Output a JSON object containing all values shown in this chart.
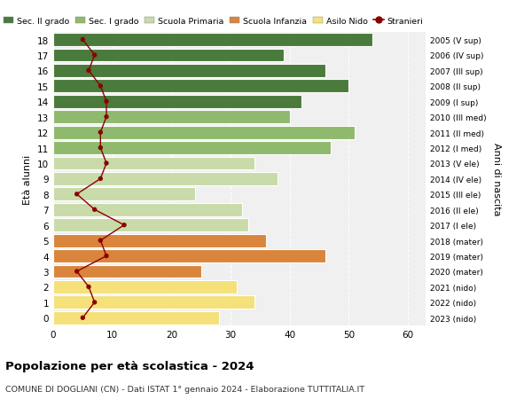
{
  "ages": [
    0,
    1,
    2,
    3,
    4,
    5,
    6,
    7,
    8,
    9,
    10,
    11,
    12,
    13,
    14,
    15,
    16,
    17,
    18
  ],
  "bar_values": [
    28,
    34,
    31,
    25,
    46,
    36,
    33,
    32,
    24,
    38,
    34,
    47,
    51,
    40,
    42,
    50,
    46,
    39,
    54
  ],
  "stranieri": [
    5,
    7,
    6,
    4,
    9,
    8,
    12,
    7,
    4,
    8,
    9,
    8,
    8,
    9,
    9,
    8,
    6,
    7,
    5
  ],
  "bar_colors": [
    "#f5e07a",
    "#f5e07a",
    "#f5e07a",
    "#d9853c",
    "#d9853c",
    "#d9853c",
    "#c8dba8",
    "#c8dba8",
    "#c8dba8",
    "#c8dba8",
    "#c8dba8",
    "#8fba6e",
    "#8fba6e",
    "#8fba6e",
    "#4a7a3c",
    "#4a7a3c",
    "#4a7a3c",
    "#4a7a3c",
    "#4a7a3c"
  ],
  "right_labels": [
    "2023 (nido)",
    "2022 (nido)",
    "2021 (nido)",
    "2020 (mater)",
    "2019 (mater)",
    "2018 (mater)",
    "2017 (I ele)",
    "2016 (II ele)",
    "2015 (III ele)",
    "2014 (IV ele)",
    "2013 (V ele)",
    "2012 (I med)",
    "2011 (II med)",
    "2010 (III med)",
    "2009 (I sup)",
    "2008 (II sup)",
    "2007 (III sup)",
    "2006 (IV sup)",
    "2005 (V sup)"
  ],
  "legend_labels": [
    "Sec. II grado",
    "Sec. I grado",
    "Scuola Primaria",
    "Scuola Infanzia",
    "Asilo Nido",
    "Stranieri"
  ],
  "legend_colors": [
    "#4a7a3c",
    "#8fba6e",
    "#c8dba8",
    "#d9853c",
    "#f5e07a",
    "#8b0000"
  ],
  "ylabel_left": "Età alunni",
  "ylabel_right": "Anni di nascita",
  "title": "Popolazione per età scolastica - 2024",
  "subtitle": "COMUNE DI DOGLIANI (CN) - Dati ISTAT 1° gennaio 2024 - Elaborazione TUTTITALIA.IT",
  "xlim": [
    0,
    63
  ],
  "background_color": "#ffffff",
  "plot_bg_color": "#f0f0f0",
  "grid_color": "#ffffff",
  "stranieri_color": "#8b0000",
  "bar_edge_color": "#ffffff"
}
